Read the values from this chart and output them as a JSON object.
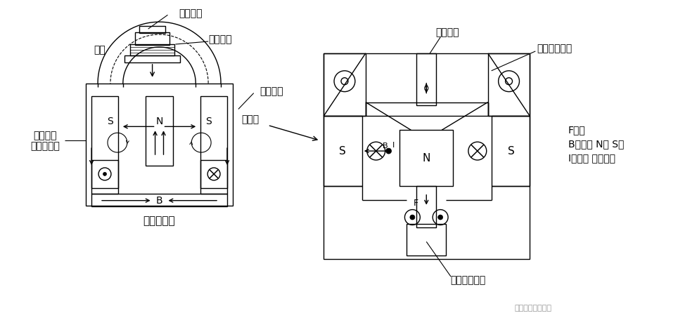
{
  "bg_color": "#ffffff",
  "line_color": "#000000",
  "labels": {
    "zhendong_tamian_top": "振动台面",
    "dongjuan": "动圈",
    "dongjuan_xianquan": "动圈线圈",
    "fangdatu": "放大图",
    "xingcheng_cichang": "形成磁场",
    "lici_xianquan": "励磁线圈",
    "danyici": "（单励磁）",
    "zhendong_fasheji": "振动发生机",
    "zhendong_tamian_right": "振动台面",
    "shangbu_zhicheng": "上部支撑机构",
    "xiabu_zhicheng": "下部支撑机构",
    "F_label": "F：力",
    "B_label": "B：磁束 N进 S出",
    "I_label": "I：电流 又进点出",
    "watermark": "振动试验学习笔记"
  },
  "font_main": 10,
  "font_label": 9
}
